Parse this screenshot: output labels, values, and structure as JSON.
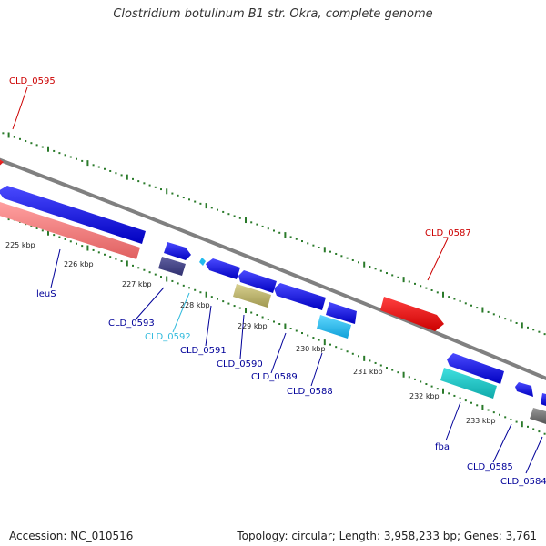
{
  "title": "Clostridium botulinum B1 str. Okra, complete genome",
  "footer": {
    "accession": "Accession: NC_010516",
    "topology": "Topology: circular; Length: 3,958,233 bp; Genes: 3,761"
  },
  "ticks": [
    "225 kbp",
    "226 kbp",
    "227 kbp",
    "228 kbp",
    "229 kbp",
    "230 kbp",
    "231 kbp",
    "232 kbp",
    "233 kbp"
  ],
  "gene_labels": [
    {
      "text": "CLD_0595",
      "color": "#cc0000"
    },
    {
      "text": "CLD_0587",
      "color": "#cc0000"
    },
    {
      "text": "leuS",
      "color": "#000099"
    },
    {
      "text": "CLD_0593",
      "color": "#000099"
    },
    {
      "text": "CLD_0592",
      "color": "#33bbdd"
    },
    {
      "text": "CLD_0591",
      "color": "#000099"
    },
    {
      "text": "CLD_0590",
      "color": "#000099"
    },
    {
      "text": "CLD_0589",
      "color": "#000099"
    },
    {
      "text": "CLD_0588",
      "color": "#000099"
    },
    {
      "text": "fba",
      "color": "#000099"
    },
    {
      "text": "CLD_0585",
      "color": "#000099"
    },
    {
      "text": "CLD_0584",
      "color": "#000099"
    }
  ],
  "colors": {
    "backbone": "#808080",
    "forward_gene": "#1010e0",
    "reverse_gene": "#1010e0",
    "rrna": "#f08080",
    "red_gene": "#ee1111",
    "cyan_gene": "#22cccc",
    "olive_gene": "#b8b070",
    "navy_gene": "#404080",
    "skyblue_gene": "#22bbee",
    "gray_gene": "#707070",
    "gc_dots": "#2a7a2a"
  }
}
